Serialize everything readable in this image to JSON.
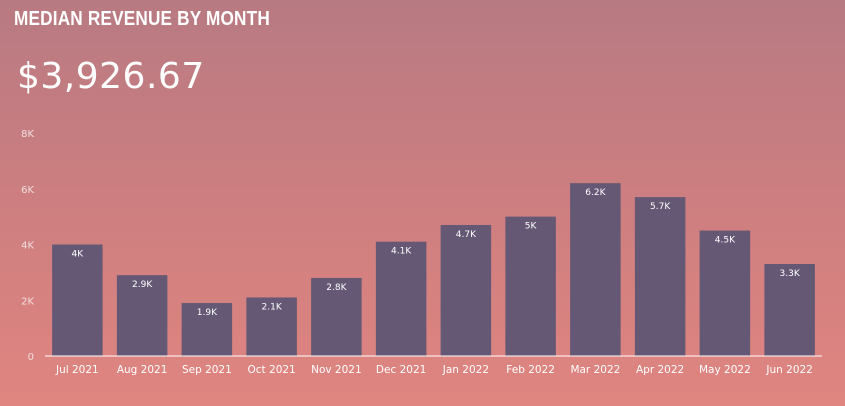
{
  "header": {
    "title": "MEDIAN REVENUE BY MONTH",
    "value": "$3,926.67"
  },
  "colors": {
    "bar": "#655874",
    "background_top": "#b87a82",
    "background_bottom": "#e08580",
    "text": "#ffffff"
  },
  "chart_data": {
    "type": "bar",
    "title": "MEDIAN REVENUE BY MONTH",
    "xlabel": "",
    "ylabel": "",
    "ylim": [
      0,
      8000
    ],
    "yticks": [
      0,
      2000,
      4000,
      6000,
      8000
    ],
    "ytick_labels": [
      "0",
      "2K",
      "4K",
      "6K",
      "8K"
    ],
    "grid": false,
    "categories": [
      "Jul 2021",
      "Aug 2021",
      "Sep 2021",
      "Oct 2021",
      "Nov 2021",
      "Dec 2021",
      "Jan 2022",
      "Feb 2022",
      "Mar 2022",
      "Apr 2022",
      "May 2022",
      "Jun 2022"
    ],
    "values": [
      4000,
      2900,
      1900,
      2100,
      2800,
      4100,
      4700,
      5000,
      6200,
      5700,
      4500,
      3300
    ],
    "data_labels": [
      "4K",
      "2.9K",
      "1.9K",
      "2.1K",
      "2.8K",
      "4.1K",
      "4.7K",
      "5K",
      "6.2K",
      "5.7K",
      "4.5K",
      "3.3K"
    ]
  }
}
